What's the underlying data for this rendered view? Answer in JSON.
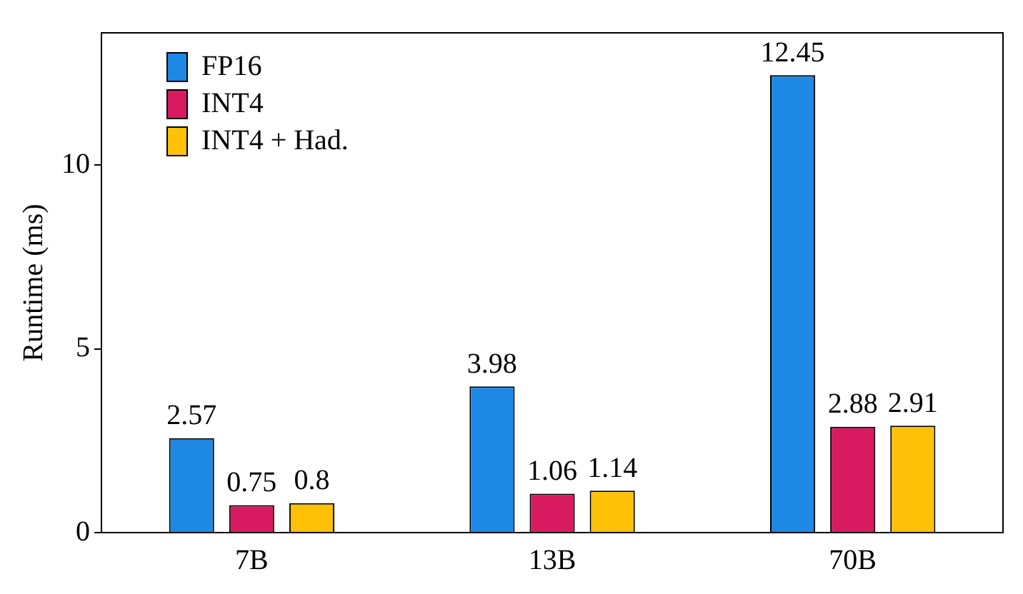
{
  "chart_data": {
    "type": "bar",
    "ylabel": "Runtime (ms)",
    "categories": [
      "7B",
      "13B",
      "70B"
    ],
    "series": [
      {
        "name": "FP16",
        "color": "#1e88e5",
        "values": [
          2.57,
          3.98,
          12.45
        ]
      },
      {
        "name": "INT4",
        "color": "#d81b60",
        "values": [
          0.75,
          1.06,
          2.88
        ]
      },
      {
        "name": "INT4 + Had.",
        "color": "#ffc107",
        "values": [
          0.8,
          1.14,
          2.91
        ]
      }
    ],
    "ylim": [
      0,
      13.6
    ],
    "yticks": [
      0,
      5,
      10
    ],
    "grid": false,
    "legend": "top left",
    "data_labels": true
  }
}
